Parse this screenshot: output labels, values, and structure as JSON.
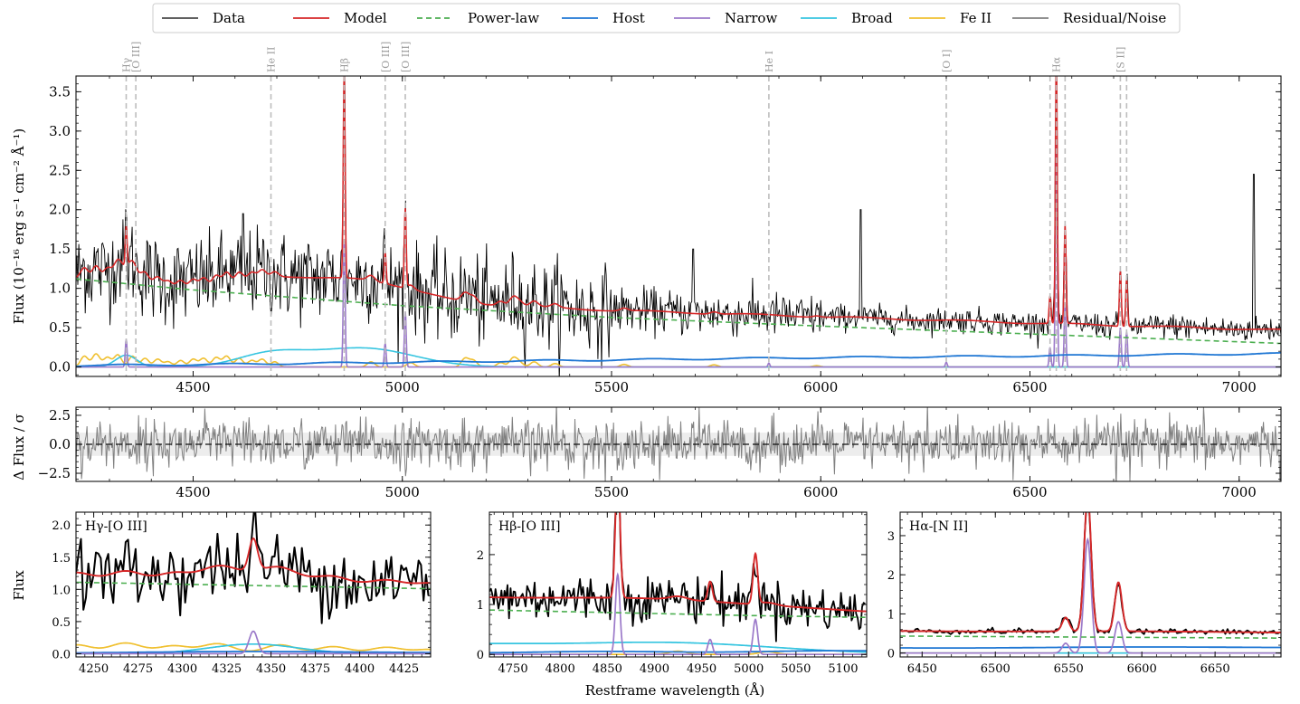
{
  "legend": {
    "items": [
      {
        "label": "Data",
        "color": "#000000",
        "dash": ""
      },
      {
        "label": "Model",
        "color": "#d62728",
        "dash": ""
      },
      {
        "label": "Power-law",
        "color": "#4caf50",
        "dash": "6,4"
      },
      {
        "label": "Host",
        "color": "#1f77d4",
        "dash": ""
      },
      {
        "label": "Narrow",
        "color": "#9b79c9",
        "dash": ""
      },
      {
        "label": "Broad",
        "color": "#36c5e0",
        "dash": ""
      },
      {
        "label": "Fe II",
        "color": "#f0c030",
        "dash": ""
      },
      {
        "label": "Residual/Noise",
        "color": "#808080",
        "dash": ""
      }
    ],
    "placement": "top-center"
  },
  "labels": {
    "top_ylabel": "Flux (10⁻¹⁶ erg s⁻¹ cm⁻² Å⁻¹)",
    "resid_ylabel": "Δ Flux / σ",
    "bottom_ylabel": "Flux",
    "xlabel": "Restframe wavelength (Å)"
  },
  "chart_data": [
    {
      "type": "line",
      "panel": "main",
      "xlim": [
        4220,
        7100
      ],
      "ylim": [
        -0.12,
        3.7
      ],
      "xticks": [
        4500,
        5000,
        5500,
        6000,
        6500,
        7000
      ],
      "yticks": [
        "0.0",
        "0.5",
        "1.0",
        "1.5",
        "2.0",
        "2.5",
        "3.0",
        "3.5"
      ],
      "line_markers": [
        {
          "label": "Hγ",
          "x": 4340
        },
        {
          "label": "[O III]",
          "x": 4363
        },
        {
          "label": "He II",
          "x": 4686
        },
        {
          "label": "Hβ",
          "x": 4861
        },
        {
          "label": "[O III]",
          "x": 4959
        },
        {
          "label": "[O III]",
          "x": 5007
        },
        {
          "label": "He I",
          "x": 5876
        },
        {
          "label": "[O I]",
          "x": 6300
        },
        {
          "label": "Hα",
          "x": 6563
        },
        {
          "label": "",
          "x": 6548
        },
        {
          "label": "",
          "x": 6584
        },
        {
          "label": "[S II]",
          "x": 6716
        },
        {
          "label": "",
          "x": 6731
        }
      ],
      "powerlaw": {
        "x": [
          4220,
          4500,
          5000,
          5500,
          6000,
          6500,
          7100
        ],
        "y": [
          1.12,
          0.98,
          0.78,
          0.63,
          0.52,
          0.42,
          0.3
        ]
      },
      "host": {
        "x": [
          4220,
          4500,
          5000,
          5500,
          6000,
          6500,
          7100
        ],
        "y": [
          0.02,
          0.03,
          0.06,
          0.09,
          0.12,
          0.14,
          0.17
        ]
      },
      "broad_components": [
        {
          "center": 4340,
          "sigma": 25,
          "amp": 0.15
        },
        {
          "center": 4686,
          "sigma": 80,
          "amp": 0.16
        },
        {
          "center": 4905,
          "sigma": 120,
          "amp": 0.24
        }
      ],
      "narrow_lines": [
        {
          "x": 4340,
          "amp": 0.35
        },
        {
          "x": 4861,
          "amp": 1.6
        },
        {
          "x": 4959,
          "amp": 0.3
        },
        {
          "x": 5007,
          "amp": 0.7
        },
        {
          "x": 5876,
          "amp": 0.05
        },
        {
          "x": 6300,
          "amp": 0.06
        },
        {
          "x": 6548,
          "amp": 0.25
        },
        {
          "x": 6563,
          "amp": 2.9
        },
        {
          "x": 6584,
          "amp": 0.8
        },
        {
          "x": 6716,
          "amp": 0.5
        },
        {
          "x": 6731,
          "amp": 0.45
        }
      ],
      "model_peaks": [
        {
          "x": 4340,
          "amp": 0.5
        },
        {
          "x": 4861,
          "amp": 2.65
        },
        {
          "x": 4959,
          "amp": 0.4
        },
        {
          "x": 5007,
          "amp": 1.0
        },
        {
          "x": 6548,
          "amp": 0.35
        },
        {
          "x": 6563,
          "amp": 3.45
        },
        {
          "x": 6584,
          "amp": 1.25
        },
        {
          "x": 6716,
          "amp": 0.7
        },
        {
          "x": 6731,
          "amp": 0.6
        }
      ]
    },
    {
      "type": "line",
      "panel": "residual",
      "xlim": [
        4220,
        7100
      ],
      "ylim": [
        -3.2,
        3.2
      ],
      "xticks": [
        4500,
        5000,
        5500,
        6000,
        6500,
        7000
      ],
      "yticks": [
        "−2.5",
        "0.0",
        "2.5"
      ],
      "noise_band": [
        -1,
        1
      ]
    },
    {
      "type": "line",
      "panel": "zoom",
      "title": "Hγ-[O III]",
      "xlim": [
        4240,
        4440
      ],
      "ylim": [
        -0.05,
        2.2
      ],
      "xticks": [
        4250,
        4275,
        4300,
        4325,
        4350,
        4375,
        4400,
        4425
      ],
      "yticks": [
        "0.0",
        "0.5",
        "1.0",
        "1.5",
        "2.0"
      ]
    },
    {
      "type": "line",
      "panel": "zoom",
      "title": "Hβ-[O III]",
      "xlim": [
        4725,
        5125
      ],
      "ylim": [
        -0.05,
        2.85
      ],
      "xticks": [
        4750,
        4800,
        4850,
        4900,
        4950,
        5000,
        5050,
        5100
      ],
      "yticks": [
        "0",
        "1",
        "2"
      ]
    },
    {
      "type": "line",
      "panel": "zoom",
      "title": "Hα-[N II]",
      "xlim": [
        6435,
        6695
      ],
      "ylim": [
        -0.1,
        3.6
      ],
      "xticks": [
        6450,
        6500,
        6550,
        6600,
        6650
      ],
      "yticks": [
        "0",
        "1",
        "2",
        "3"
      ]
    }
  ]
}
